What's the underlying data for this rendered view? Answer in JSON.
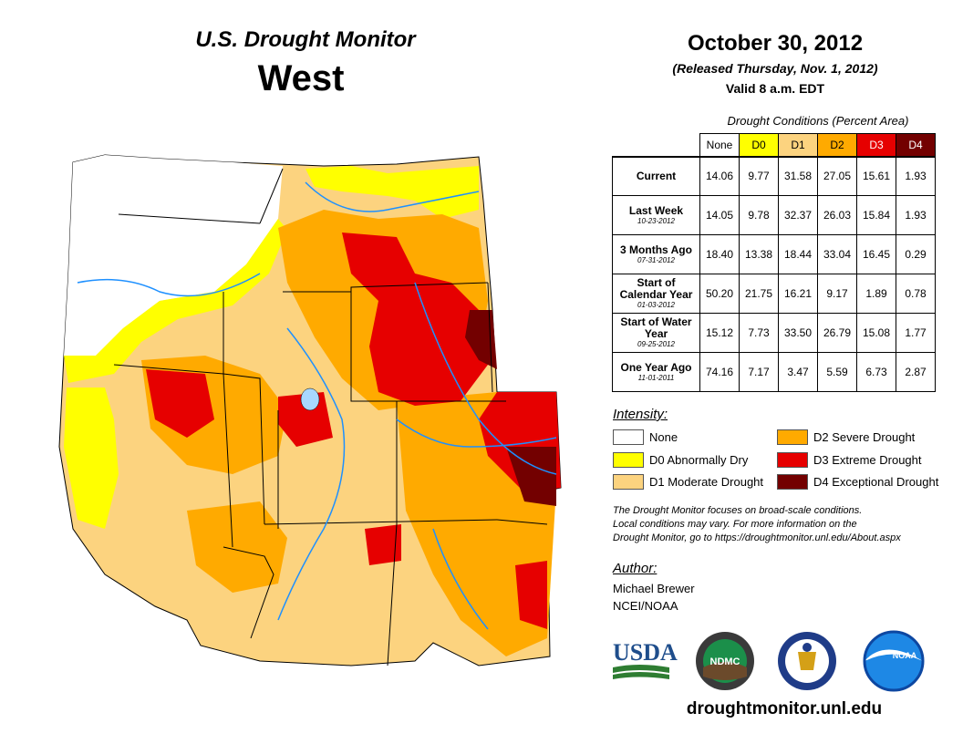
{
  "header": {
    "title": "U.S. Drought Monitor",
    "region": "West",
    "date": "October 30, 2012",
    "released": "(Released Thursday, Nov. 1, 2012)",
    "valid": "Valid 8 a.m. EDT"
  },
  "table": {
    "caption": "Drought Conditions (Percent Area)",
    "columns": [
      "None",
      "D0",
      "D1",
      "D2",
      "D3",
      "D4"
    ],
    "column_colors": [
      "#ffffff",
      "#ffff00",
      "#fcd37f",
      "#ffaa00",
      "#e60000",
      "#730000"
    ],
    "rows": [
      {
        "label": "Current",
        "sub": "",
        "values": [
          "14.06",
          "9.77",
          "31.58",
          "27.05",
          "15.61",
          "1.93"
        ]
      },
      {
        "label": "Last Week",
        "sub": "10-23-2012",
        "values": [
          "14.05",
          "9.78",
          "32.37",
          "26.03",
          "15.84",
          "1.93"
        ]
      },
      {
        "label": "3 Months Ago",
        "sub": "07-31-2012",
        "values": [
          "18.40",
          "13.38",
          "18.44",
          "33.04",
          "16.45",
          "0.29"
        ]
      },
      {
        "label": "Start of Calendar Year",
        "sub": "01-03-2012",
        "values": [
          "50.20",
          "21.75",
          "16.21",
          "9.17",
          "1.89",
          "0.78"
        ]
      },
      {
        "label": "Start of Water Year",
        "sub": "09-25-2012",
        "values": [
          "15.12",
          "7.73",
          "33.50",
          "26.79",
          "15.08",
          "1.77"
        ]
      },
      {
        "label": "One Year Ago",
        "sub": "11-01-2011",
        "values": [
          "74.16",
          "7.17",
          "3.47",
          "5.59",
          "6.73",
          "2.87"
        ]
      }
    ]
  },
  "legend": {
    "title": "Intensity:",
    "items": [
      {
        "label": "None",
        "color": "#ffffff"
      },
      {
        "label": "D0 Abnormally Dry",
        "color": "#ffff00"
      },
      {
        "label": "D1 Moderate Drought",
        "color": "#fcd37f"
      },
      {
        "label": "D2 Severe Drought",
        "color": "#ffaa00"
      },
      {
        "label": "D3 Extreme Drought",
        "color": "#e60000"
      },
      {
        "label": "D4 Exceptional Drought",
        "color": "#730000"
      }
    ]
  },
  "note": {
    "line1": "The Drought Monitor focuses on broad-scale conditions.",
    "line2": "Local conditions may vary. For more information on the",
    "line3": "Drought Monitor, go to https://droughtmonitor.unl.edu/About.aspx"
  },
  "author": {
    "title": "Author:",
    "name": "Michael Brewer",
    "org": "NCEI/NOAA"
  },
  "logos": {
    "usda": "USDA",
    "ndmc": "NDMC",
    "noaa": "NOAA"
  },
  "footer": {
    "url": "droughtmonitor.unl.edu"
  }
}
